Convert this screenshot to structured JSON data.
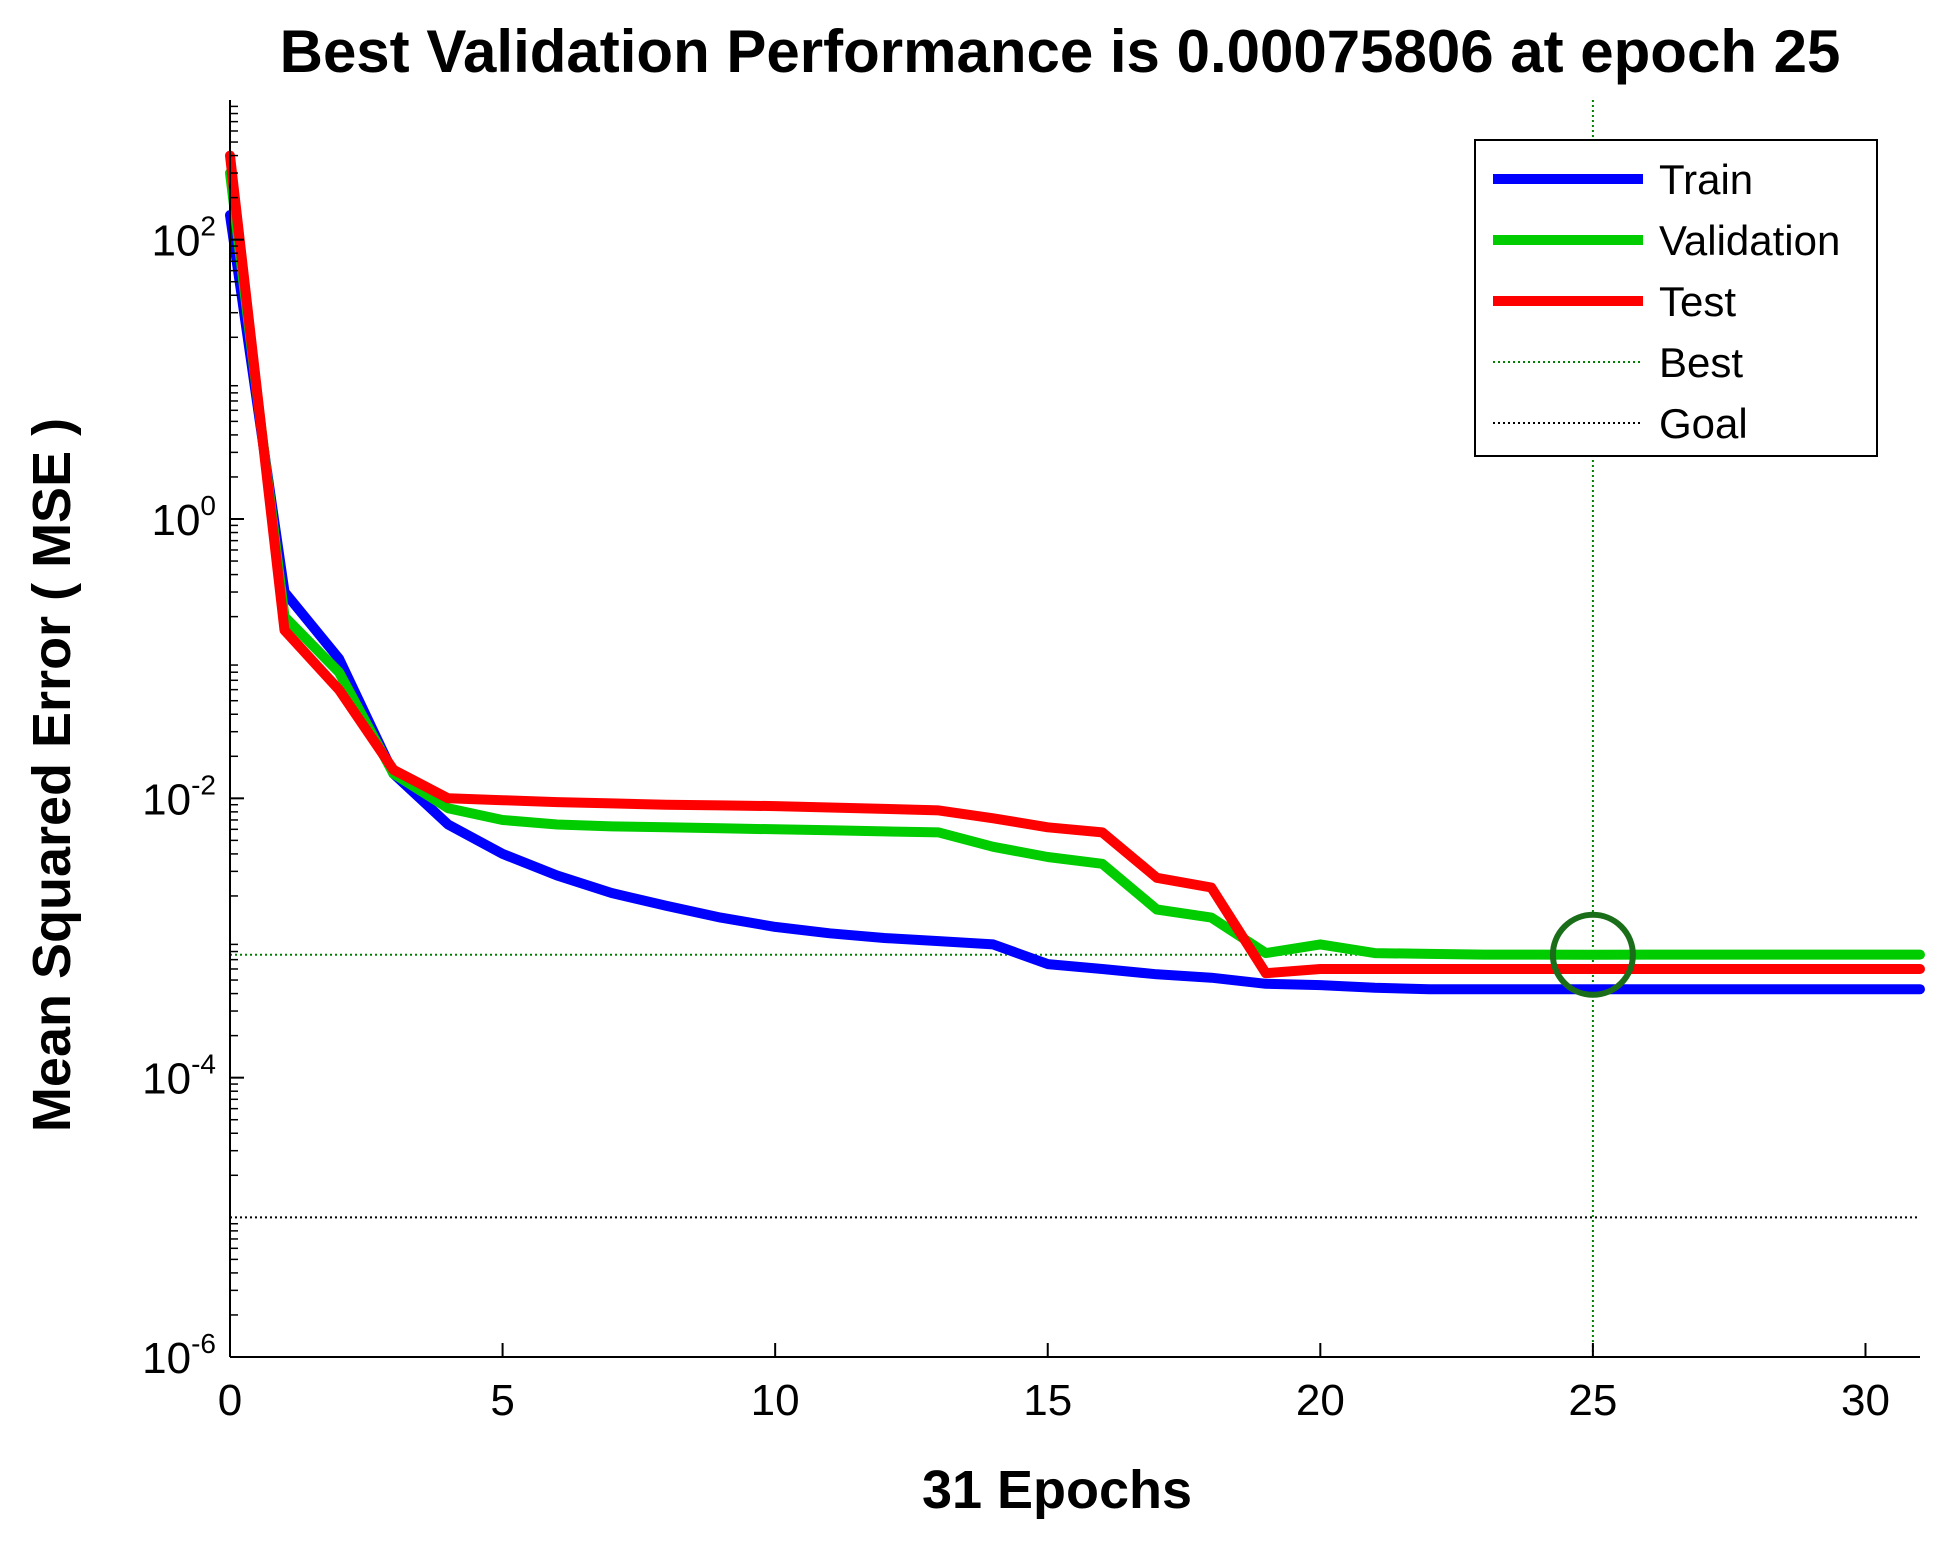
{
  "chart_data": {
    "type": "line",
    "title": "Best Validation Performance is 0.00075806 at epoch 25",
    "xlabel": "31 Epochs",
    "ylabel": "Mean Squared Error ( MSE )",
    "yscale": "log",
    "xlim": [
      0,
      31
    ],
    "ylim": [
      1e-06,
      1000
    ],
    "xticks": [
      0,
      5,
      10,
      15,
      20,
      25,
      30
    ],
    "xtick_labels": [
      "0",
      "5",
      "10",
      "15",
      "20",
      "25",
      "30"
    ],
    "yticks": [
      {
        "base": "10",
        "exp": "-6",
        "value": 1e-06
      },
      {
        "base": "10",
        "exp": "-4",
        "value": 0.0001
      },
      {
        "base": "10",
        "exp": "-2",
        "value": 0.01
      },
      {
        "base": "10",
        "exp": "0",
        "value": 1
      },
      {
        "base": "10",
        "exp": "2",
        "value": 100
      }
    ],
    "grid": false,
    "legend_position": "top-right",
    "x": [
      0,
      1,
      2,
      3,
      4,
      5,
      6,
      7,
      8,
      9,
      10,
      11,
      12,
      13,
      14,
      15,
      16,
      17,
      18,
      19,
      20,
      21,
      22,
      23,
      24,
      25,
      26,
      27,
      28,
      29,
      30,
      31
    ],
    "series": [
      {
        "name": "Train",
        "color": "#0000ff",
        "style": "solid",
        "values": [
          150,
          0.3,
          0.1,
          0.015,
          0.0065,
          0.004,
          0.0028,
          0.0021,
          0.0017,
          0.0014,
          0.0012,
          0.00108,
          0.001,
          0.00095,
          0.0009,
          0.00065,
          0.0006,
          0.00055,
          0.00052,
          0.00047,
          0.00046,
          0.00044,
          0.00043,
          0.00043,
          0.00043,
          0.00043,
          0.00043,
          0.00043,
          0.00043,
          0.00043,
          0.00043,
          0.00043
        ]
      },
      {
        "name": "Validation",
        "color": "#00cc00",
        "style": "solid",
        "values": [
          300,
          0.2,
          0.08,
          0.015,
          0.0085,
          0.007,
          0.0065,
          0.0063,
          0.0062,
          0.0061,
          0.006,
          0.0059,
          0.0058,
          0.0057,
          0.0045,
          0.0038,
          0.0034,
          0.0016,
          0.0014,
          0.00078,
          0.0009,
          0.00078,
          0.00077,
          0.00076,
          0.00076,
          0.00075806,
          0.00076,
          0.00076,
          0.00076,
          0.00076,
          0.00076,
          0.00076
        ]
      },
      {
        "name": "Test",
        "color": "#ff0000",
        "style": "solid",
        "values": [
          400,
          0.16,
          0.06,
          0.016,
          0.01,
          0.0097,
          0.0094,
          0.0092,
          0.009,
          0.0089,
          0.0088,
          0.0086,
          0.0084,
          0.0082,
          0.0072,
          0.0062,
          0.0057,
          0.0027,
          0.0023,
          0.00056,
          0.0006,
          0.0006,
          0.0006,
          0.0006,
          0.0006,
          0.0006,
          0.0006,
          0.0006,
          0.0006,
          0.0006,
          0.0006,
          0.0006
        ]
      }
    ],
    "best": {
      "label": "Best",
      "epoch": 25,
      "value": 0.00075806,
      "color": "#008000",
      "style": "dotted"
    },
    "goal": {
      "label": "Goal",
      "value": 1e-05,
      "color": "#000000",
      "style": "dotted"
    }
  }
}
